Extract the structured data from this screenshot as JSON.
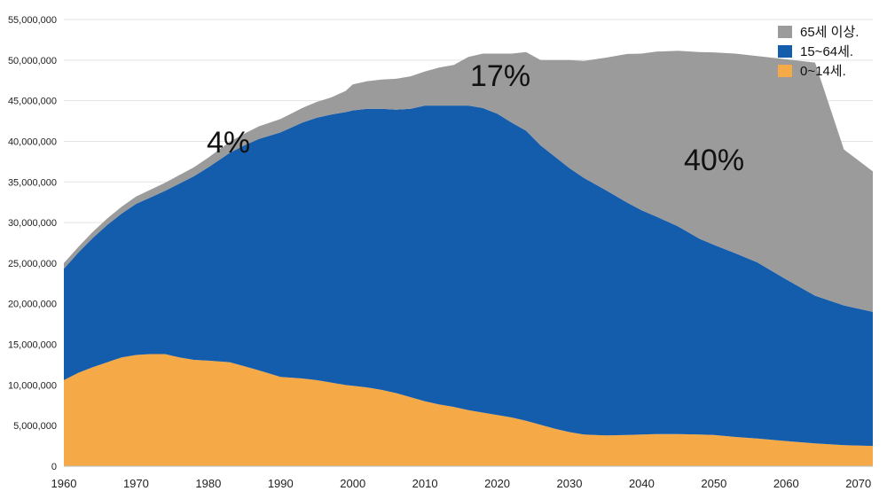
{
  "chart_data": {
    "type": "area",
    "stacked": true,
    "title": "",
    "xlabel": "",
    "ylabel": "",
    "xlim": [
      1960,
      2072
    ],
    "ylim": [
      0,
      55000000
    ],
    "grid": true,
    "legend_position": "top-right",
    "x_ticks": [
      "1960",
      "1970",
      "1980",
      "1990",
      "2000",
      "2010",
      "2020",
      "2030",
      "2040",
      "2050",
      "2060",
      "2070"
    ],
    "y_ticks": [
      "0",
      "5,000,000",
      "10,000,000",
      "15,000,000",
      "20,000,000",
      "25,000,000",
      "30,000,000",
      "35,000,000",
      "40,000,000",
      "45,000,000",
      "50,000,000",
      "55,000,000"
    ],
    "x": [
      1960,
      1962,
      1964,
      1966,
      1968,
      1970,
      1972,
      1974,
      1976,
      1978,
      1980,
      1983,
      1985,
      1987,
      1990,
      1993,
      1995,
      1997,
      1999,
      2000,
      2002,
      2004,
      2006,
      2008,
      2010,
      2012,
      2014,
      2016,
      2018,
      2020,
      2022,
      2024,
      2026,
      2028,
      2030,
      2032,
      2035,
      2038,
      2040,
      2042,
      2045,
      2048,
      2050,
      2053,
      2056,
      2060,
      2064,
      2068,
      2072
    ],
    "series": [
      {
        "name": "0~14세.",
        "color": "#f5a947",
        "values": [
          10600000,
          11500000,
          12200000,
          12800000,
          13400000,
          13700000,
          13800000,
          13800000,
          13400000,
          13100000,
          13000000,
          12800000,
          12300000,
          11800000,
          11000000,
          10800000,
          10600000,
          10300000,
          10000000,
          9900000,
          9700000,
          9400000,
          9000000,
          8500000,
          8000000,
          7600000,
          7300000,
          6900000,
          6600000,
          6300000,
          6000000,
          5600000,
          5100000,
          4600000,
          4200000,
          3900000,
          3800000,
          3850000,
          3900000,
          3950000,
          3950000,
          3900000,
          3850000,
          3600000,
          3400000,
          3100000,
          2800000,
          2600000,
          2500000
        ]
      },
      {
        "name": "15~64세.",
        "color": "#145cac",
        "values": [
          13700000,
          14800000,
          15900000,
          16900000,
          17700000,
          18600000,
          19300000,
          20100000,
          21400000,
          22600000,
          23800000,
          25800000,
          27200000,
          28500000,
          30100000,
          31500000,
          32300000,
          33000000,
          33600000,
          33900000,
          34300000,
          34600000,
          34900000,
          35500000,
          36400000,
          36800000,
          37100000,
          37500000,
          37500000,
          37100000,
          36300000,
          35700000,
          34400000,
          33500000,
          32500000,
          31600000,
          30200000,
          28600000,
          27600000,
          26800000,
          25600000,
          24100000,
          23400000,
          22600000,
          21700000,
          19900000,
          18200000,
          17200000,
          16500000
        ]
      },
      {
        "name": "65세 이상.",
        "color": "#9b9b9b",
        "values": [
          700000,
          700000,
          750000,
          800000,
          850000,
          900000,
          950000,
          1000000,
          1050000,
          1100000,
          1200000,
          1350000,
          1450000,
          1550000,
          1650000,
          1800000,
          1950000,
          2100000,
          2600000,
          3200000,
          3400000,
          3600000,
          3800000,
          4000000,
          4200000,
          4700000,
          5000000,
          6000000,
          6700000,
          7400000,
          8500000,
          9700000,
          10500000,
          11900000,
          13300000,
          14400000,
          16300000,
          18300000,
          19300000,
          20300000,
          21600000,
          23000000,
          23700000,
          24600000,
          25400000,
          27100000,
          28700000,
          19200000,
          17300000
        ]
      }
    ],
    "annotations": [
      "4%",
      "17%",
      "40%"
    ]
  }
}
